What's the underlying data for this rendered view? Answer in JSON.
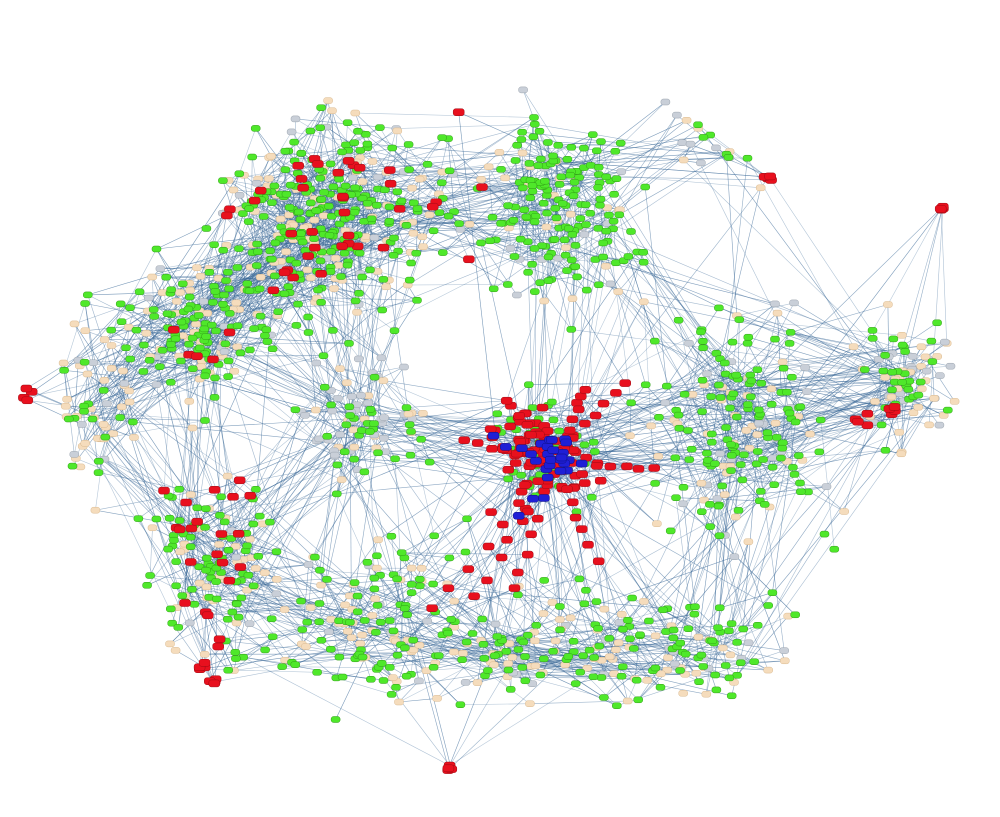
{
  "diagram": {
    "type": "network-graph",
    "labels_visible": false,
    "background": "#ffffff",
    "edge_color": "#3d6b99",
    "node_types": [
      {
        "key": "red",
        "color": "#e8101e",
        "border": "#9c0a12"
      },
      {
        "key": "blue",
        "color": "#1f1fd6",
        "border": "#0e0e80"
      },
      {
        "key": "green",
        "color": "#4fe82a",
        "border": "#2f9a16"
      },
      {
        "key": "tan",
        "color": "#f5dcbc",
        "border": "#d9b98f"
      },
      {
        "key": "gray",
        "color": "#c9cfd8",
        "border": "#9aa3ad"
      }
    ]
  }
}
